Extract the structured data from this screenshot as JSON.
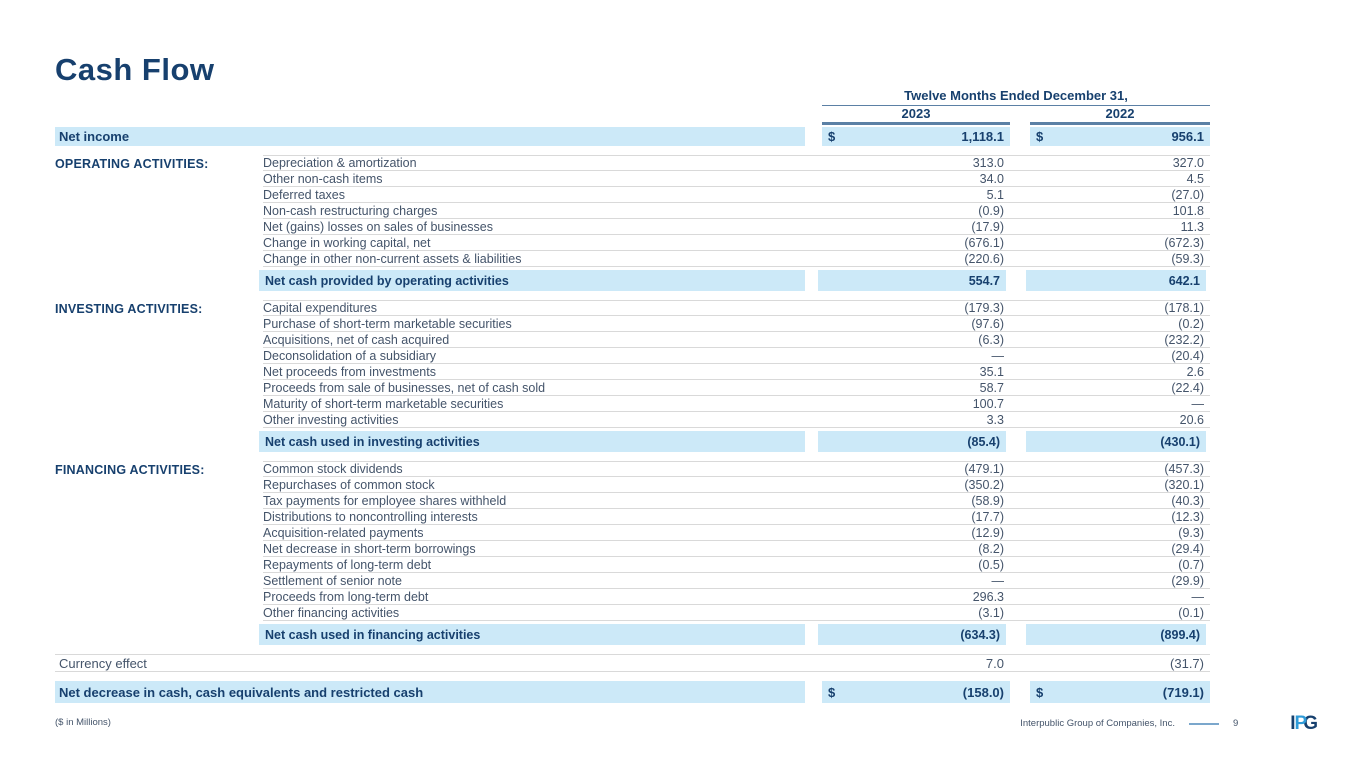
{
  "page": {
    "title": "Cash Flow",
    "footnote": "($ in Millions)",
    "footer": {
      "company": "Interpublic Group of Companies, Inc.",
      "page_number": "9",
      "logo_text": {
        "i": "I",
        "p": "P",
        "g": "G"
      }
    },
    "colors": {
      "navy_text": "#17406e",
      "body_text": "#44546a",
      "row_highlight": "#cce9f8",
      "rule_blue": "#5b80a5",
      "logo_light_blue": "#2f9bd8"
    }
  },
  "table": {
    "header": {
      "period_label": "Twelve Months Ended December 31,",
      "col_2023": "2023",
      "col_2022": "2022"
    },
    "net_income": {
      "label": "Net income",
      "currency": "$",
      "y2023": "1,118.1",
      "y2022": "956.1"
    },
    "sections": [
      {
        "id": "operating",
        "name": "OPERATING ACTIVITIES:",
        "rows": [
          {
            "label": "Depreciation & amortization",
            "y2023": "313.0",
            "y2022": "327.0"
          },
          {
            "label": "Other non-cash items",
            "y2023": "34.0",
            "y2022": "4.5"
          },
          {
            "label": "Deferred taxes",
            "y2023": "5.1",
            "y2022": "(27.0)"
          },
          {
            "label": "Non-cash restructuring charges",
            "y2023": "(0.9)",
            "y2022": "101.8"
          },
          {
            "label": "Net (gains) losses on sales of businesses",
            "y2023": "(17.9)",
            "y2022": "11.3"
          },
          {
            "label": "Change in working capital, net",
            "y2023": "(676.1)",
            "y2022": "(672.3)"
          },
          {
            "label": "Change in other non-current assets & liabilities",
            "y2023": "(220.6)",
            "y2022": "(59.3)"
          }
        ],
        "subtotal": {
          "label": "Net cash provided by operating activities",
          "y2023": "554.7",
          "y2022": "642.1"
        }
      },
      {
        "id": "investing",
        "name": "INVESTING ACTIVITIES:",
        "rows": [
          {
            "label": "Capital expenditures",
            "y2023": "(179.3)",
            "y2022": "(178.1)"
          },
          {
            "label": "Purchase of short-term marketable securities",
            "y2023": "(97.6)",
            "y2022": "(0.2)"
          },
          {
            "label": "Acquisitions, net of cash acquired",
            "y2023": "(6.3)",
            "y2022": "(232.2)"
          },
          {
            "label": "Deconsolidation of a subsidiary",
            "y2023": "—",
            "y2022": "(20.4)"
          },
          {
            "label": "Net proceeds from investments",
            "y2023": "35.1",
            "y2022": "2.6"
          },
          {
            "label": "Proceeds from sale of businesses, net of cash sold",
            "y2023": "58.7",
            "y2022": "(22.4)"
          },
          {
            "label": "Maturity of short-term marketable securities",
            "y2023": "100.7",
            "y2022": "—"
          },
          {
            "label": "Other investing activities",
            "y2023": "3.3",
            "y2022": "20.6"
          }
        ],
        "subtotal": {
          "label": "Net cash used in investing activities",
          "y2023": "(85.4)",
          "y2022": "(430.1)"
        }
      },
      {
        "id": "financing",
        "name": "FINANCING ACTIVITIES:",
        "rows": [
          {
            "label": "Common stock dividends",
            "y2023": "(479.1)",
            "y2022": "(457.3)"
          },
          {
            "label": "Repurchases of common stock",
            "y2023": "(350.2)",
            "y2022": "(320.1)"
          },
          {
            "label": "Tax payments for employee shares withheld",
            "y2023": "(58.9)",
            "y2022": "(40.3)"
          },
          {
            "label": "Distributions to noncontrolling interests",
            "y2023": "(17.7)",
            "y2022": "(12.3)"
          },
          {
            "label": "Acquisition-related payments",
            "y2023": "(12.9)",
            "y2022": "(9.3)"
          },
          {
            "label": "Net decrease in short-term borrowings",
            "y2023": "(8.2)",
            "y2022": "(29.4)"
          },
          {
            "label": "Repayments of long-term debt",
            "y2023": "(0.5)",
            "y2022": "(0.7)"
          },
          {
            "label": "Settlement of senior note",
            "y2023": "—",
            "y2022": "(29.9)"
          },
          {
            "label": "Proceeds from long-term debt",
            "y2023": "296.3",
            "y2022": "—"
          },
          {
            "label": "Other financing activities",
            "y2023": "(3.1)",
            "y2022": "(0.1)"
          }
        ],
        "subtotal": {
          "label": "Net cash used in financing activities",
          "y2023": "(634.3)",
          "y2022": "(899.4)"
        }
      }
    ],
    "currency_effect": {
      "label": "Currency effect",
      "y2023": "7.0",
      "y2022": "(31.7)"
    },
    "net_decrease": {
      "label": "Net decrease in cash, cash equivalents and restricted cash",
      "currency": "$",
      "y2023": "(158.0)",
      "y2022": "(719.1)"
    }
  }
}
